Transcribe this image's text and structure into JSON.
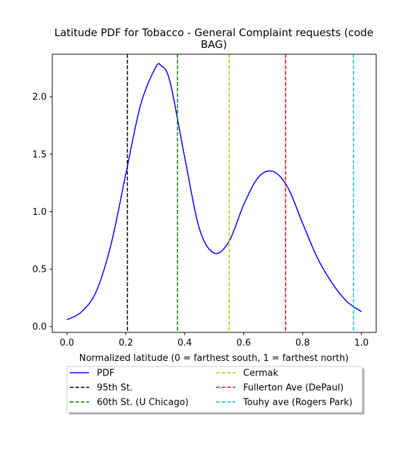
{
  "chart_data": {
    "type": "line",
    "title_lines": [
      "Latitude PDF for Tobacco - General Complaint  requests (code",
      "BAG)"
    ],
    "xlabel": "Normalized latitude (0 = farthest south, 1 = farthest north)",
    "ylabel": "",
    "xlim": [
      -0.05,
      1.05
    ],
    "ylim": [
      -0.05,
      2.37
    ],
    "xticks": [
      0.0,
      0.2,
      0.4,
      0.6,
      0.8,
      1.0
    ],
    "xtick_labels": [
      "0.0",
      "0.2",
      "0.4",
      "0.6",
      "0.8",
      "1.0"
    ],
    "yticks": [
      0.0,
      0.5,
      1.0,
      1.5,
      2.0
    ],
    "ytick_labels": [
      "0.0",
      "0.5",
      "1.0",
      "1.5",
      "2.0"
    ],
    "grid": false,
    "legend_placement": "below",
    "series": [
      {
        "name": "PDF",
        "color": "#0000ff",
        "style": "solid",
        "x": [
          0.0,
          0.05,
          0.1,
          0.15,
          0.2,
          0.25,
          0.3,
          0.32,
          0.35,
          0.4,
          0.45,
          0.5,
          0.55,
          0.6,
          0.65,
          0.7,
          0.75,
          0.8,
          0.85,
          0.9,
          0.95,
          1.0
        ],
        "y": [
          0.06,
          0.13,
          0.31,
          0.72,
          1.33,
          1.93,
          2.25,
          2.27,
          2.13,
          1.47,
          0.85,
          0.64,
          0.74,
          1.06,
          1.3,
          1.35,
          1.21,
          0.9,
          0.6,
          0.38,
          0.22,
          0.13
        ]
      }
    ],
    "vlines": [
      {
        "name": "95th St.",
        "x": 0.205,
        "color": "#000000"
      },
      {
        "name": "60th St. (U Chicago)",
        "x": 0.375,
        "color": "#008000"
      },
      {
        "name": "Cermak",
        "x": 0.551,
        "color": "#bfbf00"
      },
      {
        "name": "Fullerton Ave (DePaul)",
        "x": 0.742,
        "color": "#ff0000"
      },
      {
        "name": "Touhy ave (Rogers Park)",
        "x": 0.973,
        "color": "#00bfbf"
      }
    ],
    "legend_entries": [
      {
        "label": "PDF",
        "color": "#0000ff",
        "style": "solid"
      },
      {
        "label": "95th St.",
        "color": "#000000",
        "style": "dashed"
      },
      {
        "label": "60th St. (U Chicago)",
        "color": "#008000",
        "style": "dashed"
      },
      {
        "label": "Cermak",
        "color": "#bfbf00",
        "style": "dashed"
      },
      {
        "label": "Fullerton Ave (DePaul)",
        "color": "#ff0000",
        "style": "dashed"
      },
      {
        "label": "Touhy ave (Rogers Park)",
        "color": "#00bfbf",
        "style": "dashed"
      }
    ]
  }
}
